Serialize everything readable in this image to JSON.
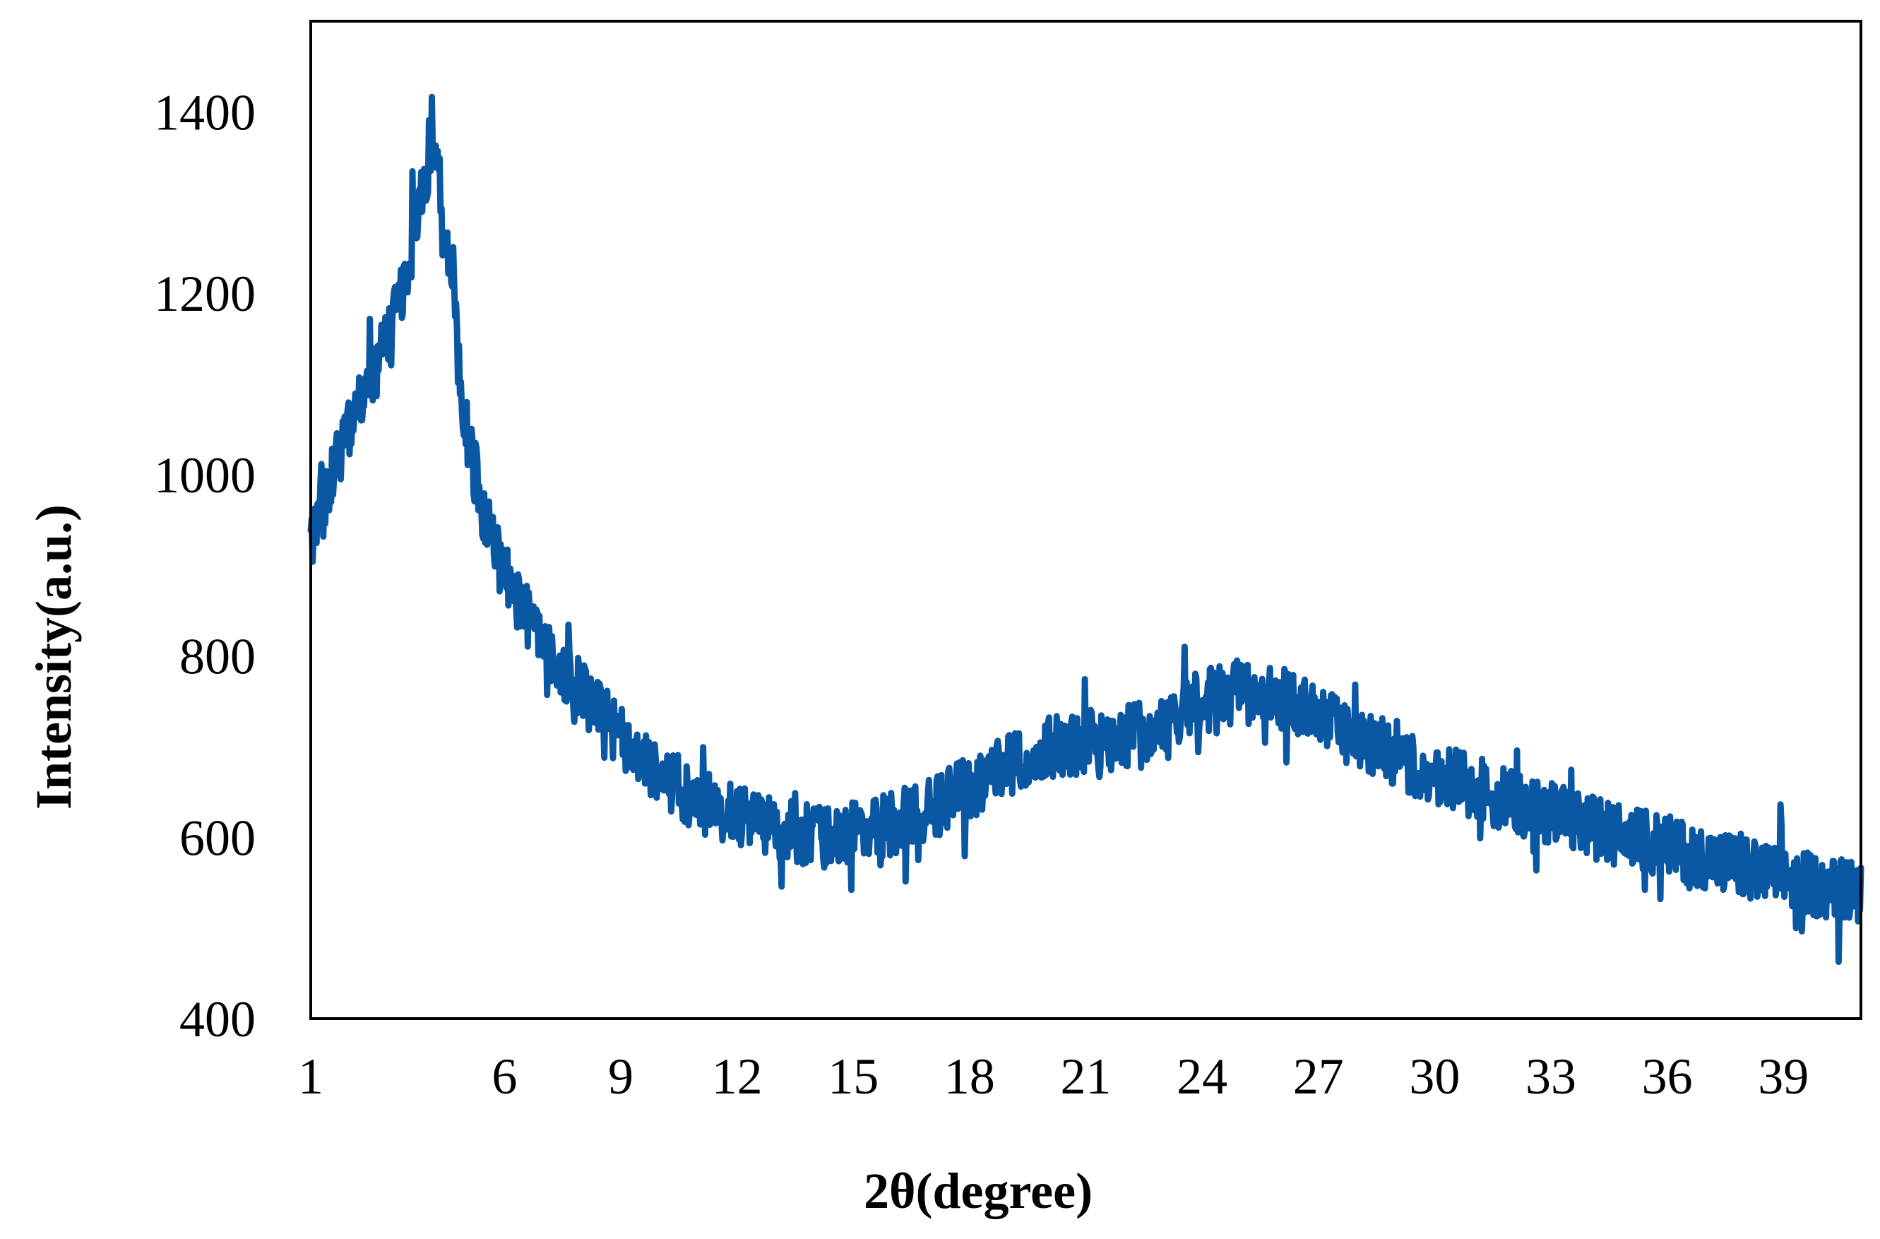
{
  "chart_data": {
    "type": "line",
    "title": "",
    "xlabel": "2θ(degree)",
    "ylabel": "Intensity(a.u.)",
    "xlim": [
      1,
      41
    ],
    "ylim": [
      400,
      1500
    ],
    "xticks": [
      1,
      6,
      9,
      12,
      15,
      18,
      21,
      24,
      27,
      30,
      33,
      36,
      39
    ],
    "yticks": [
      400,
      600,
      800,
      1000,
      1200,
      1400
    ],
    "grid": false,
    "legend": "none",
    "line_color": "#0a57a3",
    "series": [
      {
        "profile_x": [
          1.0,
          1.5,
          2.0,
          2.5,
          3.0,
          3.5,
          3.8,
          4.2,
          4.6,
          5.0,
          5.5,
          6.0,
          6.5,
          7.0,
          8.0,
          9.0,
          10.0,
          11.0,
          12.0,
          13.0,
          14.0,
          15.0,
          16.0,
          17.0,
          18.0,
          19.0,
          20.0,
          21.0,
          22.0,
          23.0,
          24.0,
          25.0,
          26.0,
          27.0,
          28.0,
          29.0,
          30.0,
          31.0,
          32.0,
          33.0,
          34.0,
          35.0,
          36.0,
          37.0,
          38.0,
          39.0,
          40.0,
          41.0
        ],
        "profile_y": [
          920,
          990,
          1050,
          1100,
          1150,
          1220,
          1300,
          1360,
          1220,
          1050,
          950,
          890,
          850,
          810,
          760,
          710,
          670,
          640,
          625,
          610,
          600,
          605,
          615,
          630,
          655,
          680,
          700,
          705,
          710,
          725,
          750,
          760,
          755,
          735,
          710,
          690,
          670,
          655,
          640,
          625,
          612,
          600,
          590,
          578,
          565,
          555,
          545,
          540
        ],
        "noise_amplitude": 70
      }
    ]
  }
}
